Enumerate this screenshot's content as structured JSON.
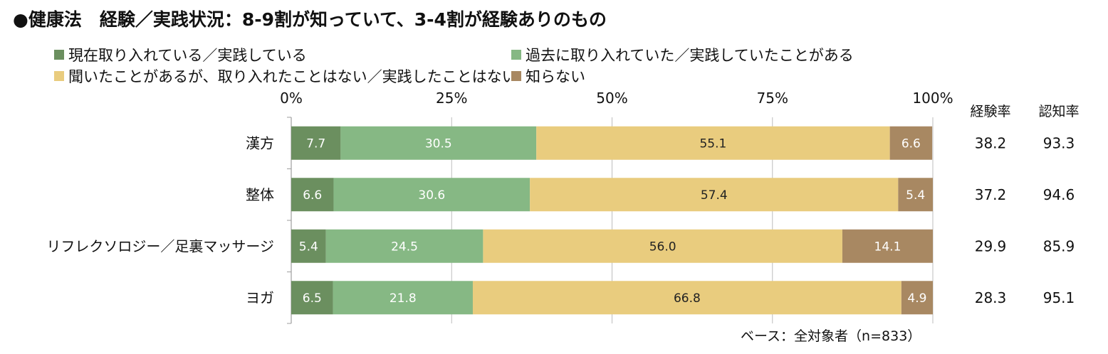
{
  "title": "●健康法　経験／実践状況：8-9割が知っていて、3-4割が経験ありのもの",
  "colors": [
    "#6B8F5F",
    "#86B884",
    "#E9CC7E",
    "#A88862"
  ],
  "chart_data": {
    "type": "bar",
    "orientation": "horizontal",
    "stacked": true,
    "categories": [
      "漢方",
      "整体",
      "リフレクソロジー／足裏マッサージ",
      "ヨガ"
    ],
    "series": [
      {
        "name": "現在取り入れている／実践している",
        "values": [
          7.7,
          6.6,
          5.4,
          6.5
        ]
      },
      {
        "name": "過去に取り入れていた／実践していたことがある",
        "values": [
          30.5,
          30.6,
          24.5,
          21.8
        ]
      },
      {
        "name": "聞いたことがあるが、取り入れたことはない／実践したことはない",
        "values": [
          55.1,
          57.4,
          56.0,
          66.8
        ]
      },
      {
        "name": "知らない",
        "values": [
          6.6,
          5.4,
          14.1,
          4.9
        ]
      }
    ],
    "value_labels": [
      [
        "7.7",
        "6.6",
        "5.4",
        "6.5"
      ],
      [
        "30.5",
        "30.6",
        "24.5",
        "21.8"
      ],
      [
        "55.1",
        "57.4",
        "56.0",
        "66.8"
      ],
      [
        "6.6",
        "5.4",
        "14.1",
        "4.9"
      ]
    ],
    "xticks": [
      "0%",
      "25%",
      "50%",
      "75%",
      "100%"
    ],
    "xlim": [
      0,
      100
    ],
    "grid": true,
    "legend": "top",
    "side_columns": [
      {
        "header": "経験率",
        "values": [
          "38.2",
          "37.2",
          "29.9",
          "28.3"
        ]
      },
      {
        "header": "認知率",
        "values": [
          "93.3",
          "94.6",
          "85.9",
          "95.1"
        ]
      }
    ]
  },
  "footnote": "ベース：全対象者（n=833）"
}
